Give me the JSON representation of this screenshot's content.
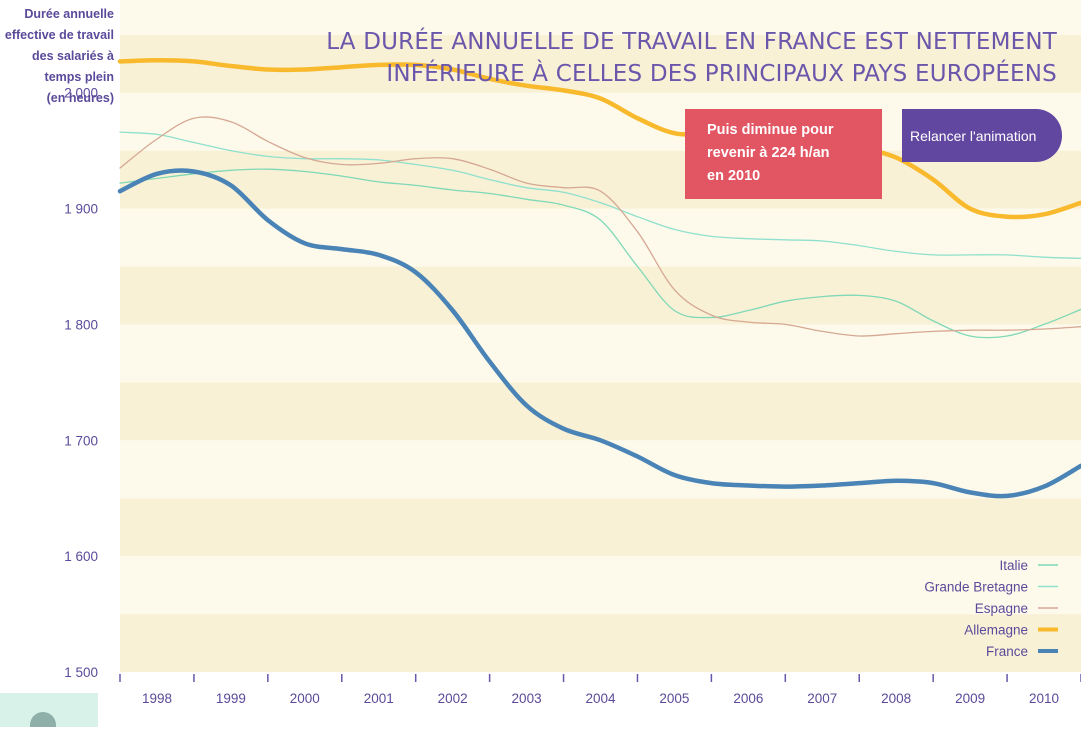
{
  "title_lines": [
    "LA DURÉE ANNUELLE DE TRAVAIL EN FRANCE EST NETTEMENT",
    "INFÉRIEURE À CELLES DES PRINCIPAUX PAYS EUROPÉENS"
  ],
  "callout_lines": [
    "Puis diminue pour",
    "revenir à 224 h/an",
    "en 2010"
  ],
  "replay_label": "Relancer l'animation",
  "colors": {
    "title": "#6a56aa",
    "band_light": "#fdfaeb",
    "band_dark": "#f8f1d6",
    "callout_bg": "#e25563",
    "button_bg": "#6247a0"
  },
  "chart_data": {
    "type": "line",
    "ylabel_lines": [
      "Durée annuelle",
      "effective de travail",
      "des salariés à",
      "temps plein",
      "(en heures)"
    ],
    "ylim": [
      1500,
      2080
    ],
    "xlim": [
      1997.5,
      2010.5
    ],
    "yticks": [
      {
        "value": 2000,
        "label": "2 000"
      },
      {
        "value": 1900,
        "label": "1 900"
      },
      {
        "value": 1800,
        "label": "1 800"
      },
      {
        "value": 1700,
        "label": "1 700"
      },
      {
        "value": 1600,
        "label": "1 600"
      },
      {
        "value": 1500,
        "label": "1 500"
      }
    ],
    "xticks": [
      1998,
      1999,
      2000,
      2001,
      2002,
      2003,
      2004,
      2005,
      2006,
      2007,
      2008,
      2009,
      2010
    ],
    "legend_position": "bottom-right",
    "series": [
      {
        "name": "Italie",
        "color": "#7fd8b6",
        "width": 1.3,
        "x": [
          1997.5,
          1998,
          1998.5,
          1999,
          1999.5,
          2000,
          2000.5,
          2001,
          2001.5,
          2002,
          2002.5,
          2003,
          2003.5,
          2004,
          2004.5,
          2005,
          2005.5,
          2006,
          2006.5,
          2007,
          2007.5,
          2008,
          2008.5,
          2009,
          2009.5,
          2010,
          2010.5
        ],
        "y": [
          1922,
          1926,
          1930,
          1933,
          1934,
          1932,
          1928,
          1923,
          1920,
          1916,
          1913,
          1908,
          1903,
          1890,
          1850,
          1812,
          1806,
          1812,
          1820,
          1824,
          1825,
          1820,
          1803,
          1790,
          1790,
          1800,
          1813
        ]
      },
      {
        "name": "Grande Bretagne",
        "color": "#8fe0cd",
        "width": 1.3,
        "x": [
          1997.5,
          1998,
          1998.5,
          1999,
          1999.5,
          2000,
          2000.5,
          2001,
          2001.5,
          2002,
          2002.5,
          2003,
          2003.5,
          2004,
          2004.5,
          2005,
          2005.5,
          2006,
          2006.5,
          2007,
          2007.5,
          2008,
          2008.5,
          2009,
          2009.5,
          2010,
          2010.5
        ],
        "y": [
          1966,
          1964,
          1957,
          1950,
          1945,
          1943,
          1943,
          1942,
          1938,
          1933,
          1925,
          1918,
          1914,
          1905,
          1893,
          1882,
          1876,
          1874,
          1873,
          1872,
          1868,
          1863,
          1860,
          1860,
          1860,
          1858,
          1857
        ]
      },
      {
        "name": "Espagne",
        "color": "#d6a893",
        "width": 1.3,
        "x": [
          1997.5,
          1998,
          1998.5,
          1999,
          1999.5,
          2000,
          2000.5,
          2001,
          2001.5,
          2002,
          2002.5,
          2003,
          2003.5,
          2004,
          2004.5,
          2005,
          2005.5,
          2006,
          2006.5,
          2007,
          2007.5,
          2008,
          2008.5,
          2009,
          2009.5,
          2010,
          2010.5
        ],
        "y": [
          1935,
          1960,
          1978,
          1975,
          1958,
          1944,
          1938,
          1939,
          1943,
          1943,
          1934,
          1922,
          1918,
          1915,
          1880,
          1830,
          1808,
          1802,
          1800,
          1794,
          1790,
          1792,
          1794,
          1795,
          1795,
          1796,
          1798
        ]
      },
      {
        "name": "Allemagne",
        "color": "#f9b92c",
        "width": 4.5,
        "x": [
          1997.5,
          1998,
          1998.5,
          1999,
          1999.5,
          2000,
          2000.5,
          2001,
          2001.5,
          2002,
          2002.5,
          2003,
          2003.5,
          2004,
          2004.5,
          2005,
          2005.5,
          2006,
          2006.5,
          2007,
          2007.5,
          2008,
          2008.5,
          2009,
          2009.5,
          2010,
          2010.5
        ],
        "y": [
          2027,
          2028,
          2027,
          2023,
          2020,
          2020,
          2022,
          2024,
          2024,
          2020,
          2012,
          2006,
          2002,
          1995,
          1978,
          1965,
          1965,
          1969,
          1967,
          1960,
          1953,
          1944,
          1925,
          1900,
          1893,
          1895,
          1905
        ]
      },
      {
        "name": "France",
        "color": "#4a83b5",
        "width": 4.5,
        "x": [
          1997.5,
          1998,
          1998.5,
          1999,
          1999.5,
          2000,
          2000.5,
          2001,
          2001.5,
          2002,
          2002.5,
          2003,
          2003.5,
          2004,
          2004.5,
          2005,
          2005.5,
          2006,
          2006.5,
          2007,
          2007.5,
          2008,
          2008.5,
          2009,
          2009.5,
          2010,
          2010.5
        ],
        "y": [
          1915,
          1930,
          1932,
          1920,
          1890,
          1870,
          1865,
          1860,
          1845,
          1812,
          1768,
          1730,
          1710,
          1700,
          1686,
          1670,
          1663,
          1661,
          1660,
          1661,
          1663,
          1665,
          1663,
          1655,
          1652,
          1660,
          1678
        ]
      }
    ]
  }
}
